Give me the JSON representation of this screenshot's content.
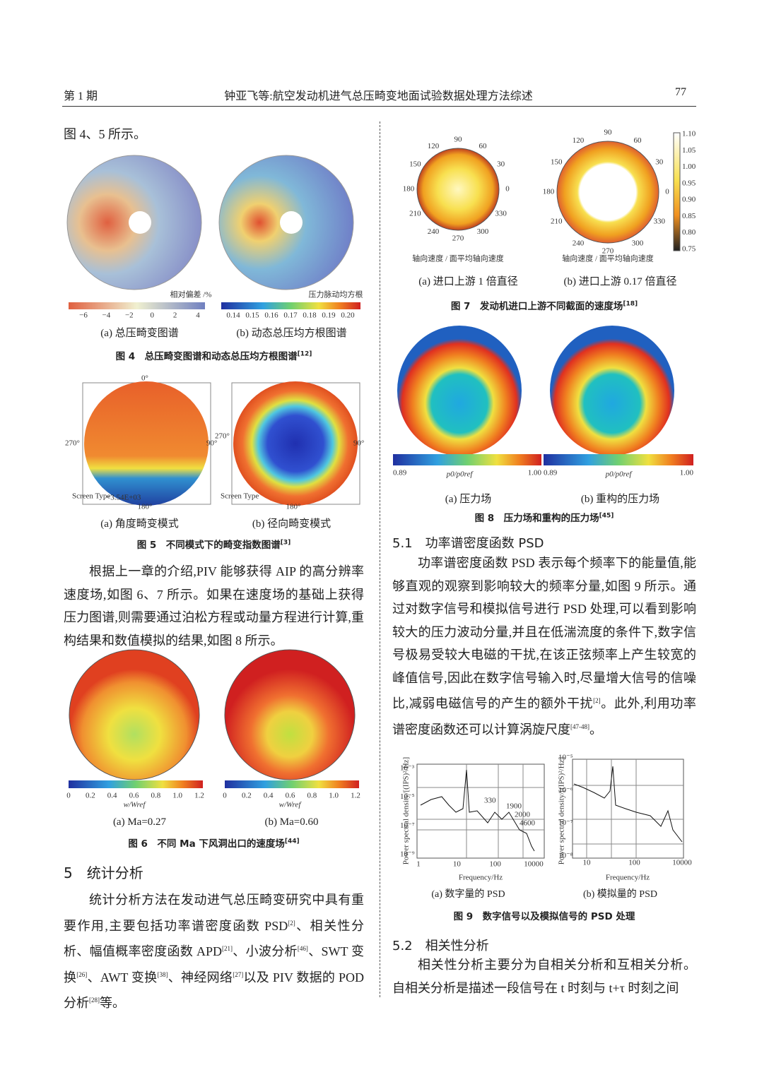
{
  "header": {
    "issue": "第 1 期",
    "title": "钟亚飞等:航空发动机进气总压畸变地面试验数据处理方法综述",
    "page": "77"
  },
  "left": {
    "intro": [
      {
        "text": "图 4、5 所示。"
      }
    ],
    "fig4": {
      "a_bar_label": "相对偏差 /%",
      "a_ticks": [
        "−6",
        "−4",
        "−2",
        "0",
        "2",
        "4"
      ],
      "b_bar_label": "压力脉动均方根",
      "b_ticks": [
        "0.14",
        "0.15",
        "0.16",
        "0.17",
        "0.18",
        "0.19",
        "0.20"
      ],
      "sub_a": "(a) 总压畸变图谱",
      "sub_b": "(b) 动态总压均方根图谱",
      "caption": {
        "text": "图 4　总压畸变图谱和动态总压均方根图谱",
        "sup": "[12]"
      }
    },
    "fig5": {
      "top": "0°",
      "left": "270°",
      "right": "90°",
      "bottom": "180°",
      "screen": "Screen Type",
      "value": "−3.54E+03",
      "sub_a": "(a) 角度畸变模式",
      "sub_b": "(b) 径向畸变模式",
      "caption": {
        "text": "图 5　不同模式下的畸变指数图谱",
        "sup": "[3]"
      }
    },
    "para1": [
      {
        "text": "根据上一章的介绍,PIV 能够获得 AIP 的高分辨率速度场,如图 6、7 所示。如果在速度场的基础上获得压力图谱,则需要通过泊松方程或动量方程进行计算,重构结果和数值模拟的结果,如图 8 所示。"
      }
    ],
    "fig6": {
      "ticks": [
        "0",
        "0.2",
        "0.4",
        "0.6",
        "0.8",
        "1.0",
        "1.2"
      ],
      "bar_label": "w/Wref",
      "sub_a": "(a) Ma=0.27",
      "sub_b": "(b) Ma=0.60",
      "caption": {
        "text": "图 6　不同 Ma 下风洞出口的速度场",
        "sup": "[44]"
      }
    },
    "heading": "5　统计分析",
    "para2": [
      {
        "text": "统计分析方法在发动进气总压畸变研究中具有重要作用,主要包括功率谱密度函数 PSD",
        "sup": "[2]"
      },
      {
        "text": "、相关性分析、幅值概率密度函数 APD",
        "sup": "[21]"
      },
      {
        "text": "、小波分析",
        "sup": "[46]"
      },
      {
        "text": "、SWT 变换",
        "sup": "[26]"
      },
      {
        "text": "、AWT 变换",
        "sup": "[38]"
      },
      {
        "text": "、神经网络",
        "sup": "[27]"
      },
      {
        "text": "以及 PIV 数据的 POD 分析",
        "sup": "[28]"
      },
      {
        "text": "等。"
      }
    ]
  },
  "right": {
    "fig7": {
      "angles": [
        "90",
        "60",
        "30",
        "0",
        "330",
        "300",
        "270",
        "240",
        "210",
        "180",
        "150",
        "120"
      ],
      "xlabel": "轴向速度 / 面平均轴向速度",
      "bar_ticks": [
        "1.10",
        "1.05",
        "1.00",
        "0.95",
        "0.90",
        "0.85",
        "0.80",
        "0.75"
      ],
      "sub_a": "(a) 进口上游 1 倍直径",
      "sub_b": "(b) 进口上游 0.17 倍直径",
      "caption": {
        "text": "图 7　发动机进口上游不同截面的速度场",
        "sup": "[18]"
      }
    },
    "fig8": {
      "min": "0.89",
      "label": "p0/p0ref",
      "max": "1.00",
      "sub_a": "(a) 压力场",
      "sub_b": "(b) 重构的压力场",
      "caption": {
        "text": "图 8　压力场和重构的压力场",
        "sup": "[45]"
      }
    },
    "heading1": "5.1　功率谱密度函数 PSD",
    "para1": [
      {
        "text": "功率谱密度函数 PSD 表示每个频率下的能量值,能够直观的观察到影响较大的频率分量,如图 9 所示。通过对数字信号和模拟信号进行 PSD 处理,可以看到影响较大的压力波动分量,并且在低湍流度的条件下,数字信号极易受较大电磁的干扰,在该正弦频率上产生较宽的峰值信号,因此在数字信号输入时,尽量增大信号的信噪比,减弱电磁信号的产生的额外干扰",
        "sup": "[2]"
      },
      {
        "text": "。此外,利用功率谱密度函数还可以计算涡旋尺度",
        "sup": "[47-48]"
      },
      {
        "text": "。"
      }
    ],
    "fig9": {
      "ylabel": "Power spectral density/[(IPS)²/Hz]",
      "xlabel": "Frequency/Hz",
      "a_yticks": [
        "10⁻³",
        "10⁻⁵",
        "10⁻⁷",
        "10⁻⁹"
      ],
      "a_xticks": [
        "1",
        "10",
        "100",
        "10000"
      ],
      "a_notes": [
        "330",
        "1900",
        "2000",
        "4600"
      ],
      "b_yticks": [
        "10⁻⁵",
        "10⁻⁶",
        "10⁻⁷",
        "10⁻⁸"
      ],
      "b_xticks": [
        "10",
        "100",
        "10000"
      ],
      "sub_a": "(a) 数字量的 PSD",
      "sub_b": "(b) 模拟量的 PSD",
      "caption": {
        "text": "图 9　数字信号以及模拟信号的 PSD 处理",
        "sup": ""
      }
    },
    "heading2": "5.2　相关性分析",
    "para2": [
      {
        "text": "相关性分析主要分为自相关分析和互相关分析。自相关分析是描述一段信号在 t 时刻与 t+τ 时刻之间"
      }
    ]
  }
}
